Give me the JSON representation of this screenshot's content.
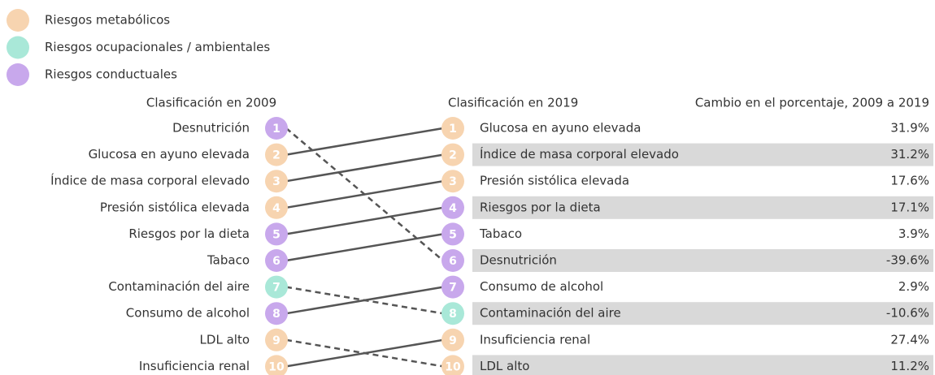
{
  "chart_data": {
    "type": "slope",
    "groups": [
      {
        "name": "Riesgos metabólicos",
        "color": "#f7d4b0"
      },
      {
        "name": "Riesgos ocupacionales / ambientales",
        "color": "#a9e8d8"
      },
      {
        "name": "Riesgos conductuales",
        "color": "#c8a8ec"
      }
    ],
    "left_title": "Clasificación en 2009",
    "right_title": "Clasificación en 2019",
    "change_title": "Cambio en el porcentaje, 2009 a 2019",
    "left": [
      {
        "rank": 1,
        "label": "Desnutrición",
        "group": 2
      },
      {
        "rank": 2,
        "label": "Glucosa en ayuno elevada",
        "group": 0
      },
      {
        "rank": 3,
        "label": "Índice de masa corporal elevado",
        "group": 0
      },
      {
        "rank": 4,
        "label": "Presión sistólica elevada",
        "group": 0
      },
      {
        "rank": 5,
        "label": "Riesgos por la dieta",
        "group": 2
      },
      {
        "rank": 6,
        "label": "Tabaco",
        "group": 2
      },
      {
        "rank": 7,
        "label": "Contaminación del aire",
        "group": 1
      },
      {
        "rank": 8,
        "label": "Consumo de alcohol",
        "group": 2
      },
      {
        "rank": 9,
        "label": "LDL alto",
        "group": 0
      },
      {
        "rank": 10,
        "label": "Insuficiencia renal",
        "group": 0
      }
    ],
    "right": [
      {
        "rank": 1,
        "label": "Glucosa en ayuno elevada",
        "group": 0,
        "change": "31.9%"
      },
      {
        "rank": 2,
        "label": "Índice de masa corporal elevado",
        "group": 0,
        "change": "31.2%"
      },
      {
        "rank": 3,
        "label": "Presión sistólica elevada",
        "group": 0,
        "change": "17.6%"
      },
      {
        "rank": 4,
        "label": "Riesgos por la dieta",
        "group": 2,
        "change": "17.1%"
      },
      {
        "rank": 5,
        "label": "Tabaco",
        "group": 2,
        "change": "3.9%"
      },
      {
        "rank": 6,
        "label": "Desnutrición",
        "group": 2,
        "change": "-39.6%"
      },
      {
        "rank": 7,
        "label": "Consumo de alcohol",
        "group": 2,
        "change": "2.9%"
      },
      {
        "rank": 8,
        "label": "Contaminación del aire",
        "group": 1,
        "change": "-10.6%"
      },
      {
        "rank": 9,
        "label": "Insuficiencia renal",
        "group": 0,
        "change": "27.4%"
      },
      {
        "rank": 10,
        "label": "LDL alto",
        "group": 0,
        "change": "11.2%"
      }
    ]
  }
}
